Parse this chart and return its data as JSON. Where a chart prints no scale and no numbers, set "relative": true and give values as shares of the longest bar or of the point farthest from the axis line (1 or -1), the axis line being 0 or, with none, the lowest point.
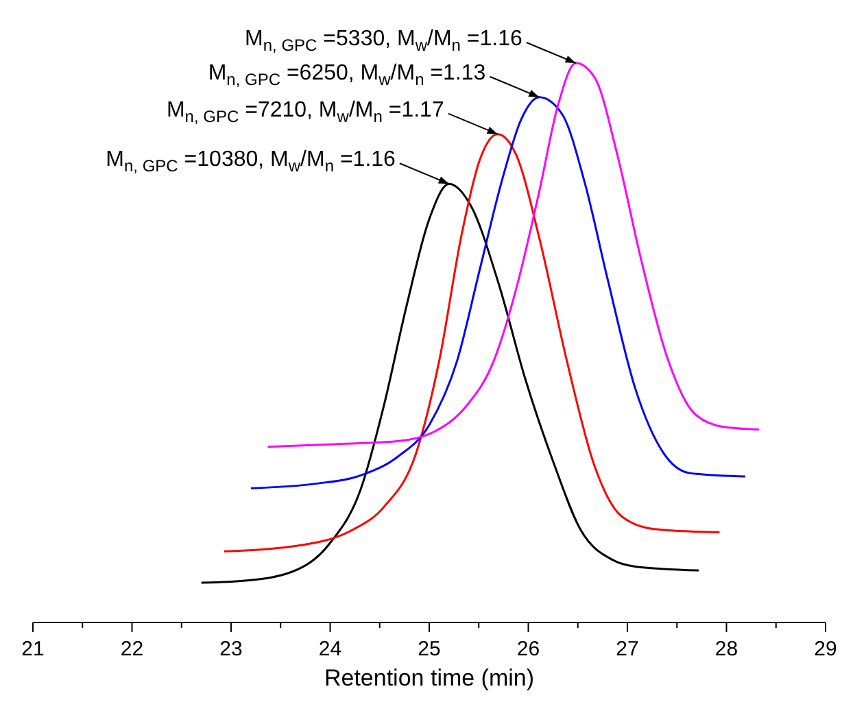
{
  "chart_data": {
    "type": "line",
    "relative": true,
    "xlabel": "Retention time (min)",
    "xlim": [
      21,
      29
    ],
    "xticks": [
      21,
      {
        "value": 21.5,
        "label": null
      },
      22,
      {
        "value": 22.5,
        "label": null
      },
      23,
      {
        "value": 23.5,
        "label": null
      },
      24,
      {
        "value": 24.5,
        "label": null
      },
      25,
      {
        "value": 25.5,
        "label": null
      },
      26,
      {
        "value": 26.5,
        "label": null
      },
      27,
      {
        "value": 27.5,
        "label": null
      },
      28,
      {
        "value": 28.5,
        "label": null
      },
      29
    ],
    "grid": false,
    "marker": "none",
    "line_style": "solid",
    "series": [
      {
        "color": "#000000",
        "x": [
          22.7,
          23.16,
          23.62,
          23.99,
          24.31,
          24.54,
          24.77,
          25.0,
          25.2,
          25.42,
          25.7,
          25.97,
          26.25,
          26.53,
          26.85,
          27.08,
          27.72
        ],
        "values": [
          0.071,
          0.075,
          0.091,
          0.14,
          0.239,
          0.386,
          0.565,
          0.721,
          0.784,
          0.745,
          0.606,
          0.435,
          0.288,
          0.165,
          0.112,
          0.1,
          0.093
        ]
      },
      {
        "color": "#ff0000",
        "x": [
          22.93,
          23.62,
          24.22,
          24.54,
          24.87,
          25.1,
          25.33,
          25.51,
          25.69,
          25.88,
          26.11,
          26.39,
          26.67,
          26.94,
          27.27,
          27.93
        ],
        "values": [
          0.127,
          0.136,
          0.165,
          0.206,
          0.304,
          0.467,
          0.696,
          0.827,
          0.873,
          0.835,
          0.688,
          0.467,
          0.279,
          0.19,
          0.167,
          0.161
        ]
      },
      {
        "color": "#0000ff",
        "x": [
          23.2,
          23.85,
          24.31,
          24.68,
          25.0,
          25.28,
          25.51,
          25.74,
          25.93,
          26.11,
          26.34,
          26.57,
          26.8,
          27.08,
          27.36,
          27.63,
          28.19
        ],
        "values": [
          0.24,
          0.248,
          0.263,
          0.296,
          0.353,
          0.467,
          0.631,
          0.794,
          0.9,
          0.939,
          0.909,
          0.786,
          0.614,
          0.418,
          0.304,
          0.267,
          0.261
        ]
      },
      {
        "color": "#ff00ff",
        "x": [
          23.37,
          24.08,
          24.68,
          25.05,
          25.37,
          25.65,
          25.88,
          26.11,
          26.3,
          26.48,
          26.67,
          26.9,
          27.13,
          27.4,
          27.68,
          27.96,
          28.33
        ],
        "values": [
          0.314,
          0.319,
          0.324,
          0.341,
          0.386,
          0.467,
          0.598,
          0.77,
          0.925,
          1,
          0.974,
          0.835,
          0.655,
          0.475,
          0.373,
          0.35,
          0.345
        ]
      }
    ],
    "annotations": [
      {
        "text": "M$_{n, GPC}$ =5330, M$_{w}$/M$_{n}$ =1.16",
        "x": 26.48,
        "y": 1
      },
      {
        "text": "M$_{n, GPC}$ =6250, M$_{w}$/M$_{n}$ =1.13",
        "x": 26.11,
        "y": 0.939
      },
      {
        "text": "M$_{n, GPC}$ =7210, M$_{w}$/M$_{n}$ =1.17",
        "x": 25.69,
        "y": 0.873
      },
      {
        "text": "M$_{n, GPC}$ =10380, M$_{w}$/M$_{n}$ =1.16",
        "x": 25.2,
        "y": 0.784
      }
    ]
  }
}
